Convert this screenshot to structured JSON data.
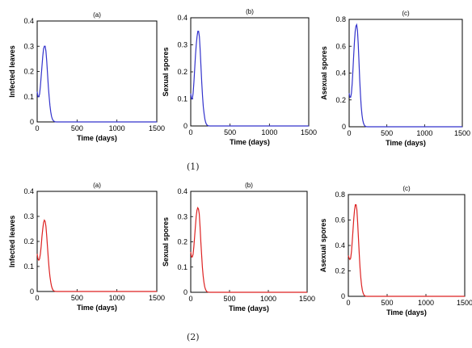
{
  "captions": [
    "(1)",
    "(2)"
  ],
  "chart_data": [
    {
      "type": "line",
      "group": "(1)",
      "panel": "(a)",
      "title": "(a)",
      "xlabel": "Time (days)",
      "ylabel": "Infected leaves",
      "xlim": [
        0,
        1500
      ],
      "ylim": [
        0,
        0.4
      ],
      "xticks": [
        "0",
        "500",
        "1000",
        "1500"
      ],
      "yticks": [
        "0",
        "0.1",
        "0.2",
        "0.3",
        "0.4"
      ],
      "color": "#3333cc",
      "series": [
        {
          "x": [
            0,
            10,
            20,
            30,
            40,
            50,
            60,
            70,
            80,
            90,
            100,
            110,
            120,
            130,
            140,
            150,
            160,
            170,
            180,
            190,
            200,
            210,
            220,
            240,
            260,
            300,
            400,
            600,
            800,
            1000,
            1200,
            1500
          ],
          "y": [
            0.12,
            0.1,
            0.1,
            0.11,
            0.14,
            0.18,
            0.22,
            0.26,
            0.29,
            0.3,
            0.3,
            0.28,
            0.24,
            0.19,
            0.14,
            0.1,
            0.065,
            0.04,
            0.022,
            0.012,
            0.006,
            0.003,
            0.001,
            0,
            0,
            0,
            0,
            0,
            0,
            0,
            0,
            0
          ]
        }
      ]
    },
    {
      "type": "line",
      "group": "(1)",
      "panel": "(b)",
      "title": "(b)",
      "xlabel": "Time (days)",
      "ylabel": "Sexual spores",
      "xlim": [
        0,
        1500
      ],
      "ylim": [
        0,
        0.4
      ],
      "xticks": [
        "0",
        "500",
        "1000",
        "1500"
      ],
      "yticks": [
        "0",
        "0.1",
        "0.2",
        "0.3",
        "0.4"
      ],
      "color": "#3333cc",
      "series": [
        {
          "x": [
            0,
            10,
            20,
            30,
            40,
            50,
            60,
            70,
            80,
            90,
            100,
            110,
            120,
            130,
            140,
            150,
            160,
            170,
            180,
            190,
            200,
            210,
            220,
            240,
            260,
            300,
            400,
            600,
            800,
            1000,
            1200,
            1500
          ],
          "y": [
            0.12,
            0.1,
            0.1,
            0.12,
            0.16,
            0.21,
            0.26,
            0.3,
            0.33,
            0.35,
            0.35,
            0.33,
            0.28,
            0.22,
            0.16,
            0.11,
            0.07,
            0.045,
            0.025,
            0.013,
            0.006,
            0.003,
            0.001,
            0,
            0,
            0,
            0,
            0,
            0,
            0,
            0,
            0
          ]
        }
      ]
    },
    {
      "type": "line",
      "group": "(1)",
      "panel": "(c)",
      "title": "(c)",
      "xlabel": "Time (days)",
      "ylabel": "Asexual spores",
      "xlim": [
        0,
        1500
      ],
      "ylim": [
        0,
        0.8
      ],
      "xticks": [
        "0",
        "500",
        "1000",
        "1500"
      ],
      "yticks": [
        "0",
        "0.2",
        "0.4",
        "0.6",
        "0.8"
      ],
      "color": "#3333cc",
      "series": [
        {
          "x": [
            0,
            10,
            20,
            30,
            40,
            50,
            60,
            70,
            80,
            90,
            100,
            110,
            120,
            130,
            140,
            150,
            160,
            170,
            180,
            190,
            200,
            210,
            220,
            240,
            260,
            300,
            400,
            600,
            800,
            1000,
            1200,
            1500
          ],
          "y": [
            0.25,
            0.22,
            0.22,
            0.25,
            0.32,
            0.42,
            0.53,
            0.63,
            0.71,
            0.75,
            0.76,
            0.72,
            0.62,
            0.49,
            0.35,
            0.24,
            0.15,
            0.09,
            0.05,
            0.027,
            0.013,
            0.006,
            0.002,
            0,
            0,
            0,
            0,
            0,
            0,
            0,
            0,
            0
          ]
        }
      ]
    },
    {
      "type": "line",
      "group": "(2)",
      "panel": "(a)",
      "title": "(a)",
      "xlabel": "Time (days)",
      "ylabel": "Infected leaves",
      "xlim": [
        0,
        1500
      ],
      "ylim": [
        0,
        0.4
      ],
      "xticks": [
        "0",
        "500",
        "1000",
        "1500"
      ],
      "yticks": [
        "0",
        "0.1",
        "0.2",
        "0.3",
        "0.4"
      ],
      "color": "#dd2222",
      "series": [
        {
          "x": [
            0,
            10,
            20,
            30,
            40,
            50,
            60,
            70,
            80,
            90,
            100,
            110,
            120,
            130,
            140,
            150,
            160,
            170,
            180,
            190,
            200,
            210,
            220,
            240,
            260,
            300,
            400,
            600,
            800,
            1000,
            1200,
            1500
          ],
          "y": [
            0.15,
            0.13,
            0.125,
            0.13,
            0.15,
            0.18,
            0.22,
            0.25,
            0.275,
            0.285,
            0.28,
            0.26,
            0.22,
            0.175,
            0.13,
            0.09,
            0.06,
            0.038,
            0.021,
            0.011,
            0.005,
            0.002,
            0.001,
            0,
            0,
            0,
            0,
            0,
            0,
            0,
            0,
            0
          ]
        }
      ]
    },
    {
      "type": "line",
      "group": "(2)",
      "panel": "(b)",
      "title": "(b)",
      "xlabel": "Time (days)",
      "ylabel": "Sexual spores",
      "xlim": [
        0,
        1500
      ],
      "ylim": [
        0,
        0.4
      ],
      "xticks": [
        "0",
        "500",
        "1000",
        "1500"
      ],
      "yticks": [
        "0",
        "0.1",
        "0.2",
        "0.3",
        "0.4"
      ],
      "color": "#dd2222",
      "series": [
        {
          "x": [
            0,
            10,
            20,
            30,
            40,
            50,
            60,
            70,
            80,
            90,
            100,
            110,
            120,
            130,
            140,
            150,
            160,
            170,
            180,
            190,
            200,
            210,
            220,
            240,
            260,
            300,
            400,
            600,
            800,
            1000,
            1200,
            1500
          ],
          "y": [
            0.16,
            0.14,
            0.14,
            0.15,
            0.18,
            0.22,
            0.26,
            0.3,
            0.325,
            0.335,
            0.33,
            0.31,
            0.26,
            0.2,
            0.15,
            0.1,
            0.065,
            0.04,
            0.022,
            0.012,
            0.006,
            0.002,
            0.001,
            0,
            0,
            0,
            0,
            0,
            0,
            0,
            0,
            0
          ]
        }
      ]
    },
    {
      "type": "line",
      "group": "(2)",
      "panel": "(c)",
      "title": "(c)",
      "xlabel": "Time (days)",
      "ylabel": "Asexual spores",
      "xlim": [
        0,
        1500
      ],
      "ylim": [
        0,
        0.8
      ],
      "xticks": [
        "0",
        "500",
        "1000",
        "1500"
      ],
      "yticks": [
        "0",
        "0.2",
        "0.4",
        "0.6",
        "0.8"
      ],
      "color": "#dd2222",
      "series": [
        {
          "x": [
            0,
            10,
            20,
            30,
            40,
            50,
            60,
            70,
            80,
            90,
            100,
            110,
            120,
            130,
            140,
            150,
            160,
            170,
            180,
            190,
            200,
            210,
            220,
            240,
            260,
            300,
            400,
            600,
            800,
            1000,
            1200,
            1500
          ],
          "y": [
            0.32,
            0.3,
            0.29,
            0.3,
            0.35,
            0.43,
            0.52,
            0.61,
            0.68,
            0.72,
            0.72,
            0.68,
            0.58,
            0.46,
            0.34,
            0.23,
            0.15,
            0.09,
            0.05,
            0.026,
            0.012,
            0.005,
            0.002,
            0,
            0,
            0,
            0,
            0,
            0,
            0,
            0,
            0
          ]
        }
      ]
    }
  ]
}
